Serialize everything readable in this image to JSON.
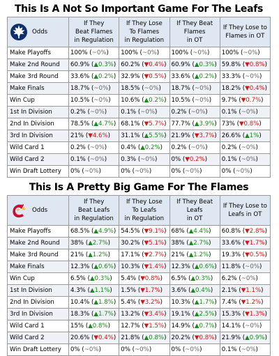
{
  "sections": [
    {
      "id": "leafs",
      "title": "This Is A Not So Important Game For The Leafs",
      "logo": "maple-leaf-icon",
      "odds_label": "Odds",
      "columns": [
        [
          "If They",
          "Beat Flames",
          "in Regulation"
        ],
        [
          "If They Lose",
          "To Flames",
          "in Regulation"
        ],
        [
          "If They Beat",
          "Flames",
          "in OT"
        ],
        [
          "If They Lose to",
          "Flames in OT"
        ]
      ],
      "rows": [
        {
          "label": "Make Playoffs",
          "cells": [
            [
              "100%",
              "~0%",
              "flat"
            ],
            [
              "100%",
              "~0%",
              "flat"
            ],
            [
              "100%",
              "~0%",
              "flat"
            ],
            [
              "100%",
              "~0%",
              "flat"
            ]
          ]
        },
        {
          "label": "Make 2nd Round",
          "cells": [
            [
              "60.9%",
              "▲0.3%",
              "up"
            ],
            [
              "60.2%",
              "▼0.4%",
              "down"
            ],
            [
              "60.9%",
              "▲0.3%",
              "up"
            ],
            [
              "59.8%",
              "▼0.8%",
              "down"
            ]
          ]
        },
        {
          "label": "Make 3rd Round",
          "cells": [
            [
              "33.6%",
              "▲0.2%",
              "up"
            ],
            [
              "32.9%",
              "▼0.5%",
              "down"
            ],
            [
              "33.6%",
              "▲0.2%",
              "up"
            ],
            [
              "33.3%",
              "~0%",
              "flat"
            ]
          ]
        },
        {
          "label": "Make Finals",
          "cells": [
            [
              "18.7%",
              "~0%",
              "flat"
            ],
            [
              "18.5%",
              "~0%",
              "flat"
            ],
            [
              "18.7%",
              "~0%",
              "flat"
            ],
            [
              "18.2%",
              "▼0.4%",
              "down"
            ]
          ]
        },
        {
          "label": "Win Cup",
          "cells": [
            [
              "10.5%",
              "~0%",
              "flat"
            ],
            [
              "10.6%",
              "▲0.2%",
              "up"
            ],
            [
              "10.5%",
              "~0%",
              "flat"
            ],
            [
              "9.7%",
              "▼0.7%",
              "down"
            ]
          ]
        },
        {
          "label": "1st In Division",
          "cells": [
            [
              "0.2%",
              "~0%",
              "flat"
            ],
            [
              "0.1%",
              "~0%",
              "flat"
            ],
            [
              "0.2%",
              "~0%",
              "flat"
            ],
            [
              "0.1%",
              "~0%",
              "flat"
            ]
          ]
        },
        {
          "label": "2nd In Division",
          "cells": [
            [
              "78.5%",
              "▲4.7%",
              "up"
            ],
            [
              "68.1%",
              "▼5.7%",
              "down"
            ],
            [
              "77.7%",
              "▲3.9%",
              "up"
            ],
            [
              "73%",
              "▼0.8%",
              "down"
            ]
          ]
        },
        {
          "label": "3rd In Division",
          "cells": [
            [
              "21%",
              "▼4.6%",
              "down"
            ],
            [
              "31.1%",
              "▲5.5%",
              "up"
            ],
            [
              "21.9%",
              "▼3.7%",
              "down"
            ],
            [
              "26.6%",
              "▲1%",
              "up"
            ]
          ]
        },
        {
          "label": "Wild Card 1",
          "cells": [
            [
              "0.2%",
              "~0%",
              "flat"
            ],
            [
              "0.4%",
              "▲0.2%",
              "up"
            ],
            [
              "0.2%",
              "~0%",
              "flat"
            ],
            [
              "0.2%",
              "~0%",
              "flat"
            ]
          ]
        },
        {
          "label": "Wild Card 2",
          "cells": [
            [
              "0.1%",
              "~0%",
              "flat"
            ],
            [
              "0.3%",
              "~0%",
              "flat"
            ],
            [
              "0%",
              "▼0.2%",
              "down"
            ],
            [
              "0.1%",
              "~0%",
              "flat"
            ]
          ]
        },
        {
          "label": "Win Draft Lottery",
          "cells": [
            [
              "0%",
              "~0%",
              "flat"
            ],
            [
              "0%",
              "~0%",
              "flat"
            ],
            [
              "0%",
              "~0%",
              "flat"
            ],
            [
              "0%",
              "~0%",
              "flat"
            ]
          ]
        }
      ]
    },
    {
      "id": "flames",
      "title": "This Is A Pretty Big Game For The Flames",
      "logo": "flaming-c-icon",
      "odds_label": "Odds",
      "columns": [
        [
          "If They",
          "Beat Leafs",
          "in Regulation"
        ],
        [
          "If They Lose",
          "To Leafs",
          "in Regulation"
        ],
        [
          "If They Beat",
          "Leafs",
          "in OT"
        ],
        [
          "If They Lose to",
          "Leafs in OT"
        ]
      ],
      "rows": [
        {
          "label": "Make Playoffs",
          "cells": [
            [
              "68.5%",
              "▲4.9%",
              "up"
            ],
            [
              "54.5%",
              "▼9.1%",
              "down"
            ],
            [
              "68%",
              "▲4.4%",
              "up"
            ],
            [
              "60.8%",
              "▼2.8%",
              "down"
            ]
          ]
        },
        {
          "label": "Make 2nd Round",
          "cells": [
            [
              "38%",
              "▲2.7%",
              "up"
            ],
            [
              "30.2%",
              "▼5.1%",
              "down"
            ],
            [
              "38%",
              "▲2.7%",
              "up"
            ],
            [
              "33.6%",
              "▼1.7%",
              "down"
            ]
          ]
        },
        {
          "label": "Make 3rd Round",
          "cells": [
            [
              "21%",
              "▲1.2%",
              "up"
            ],
            [
              "17.1%",
              "▼2.7%",
              "down"
            ],
            [
              "21%",
              "▲1.2%",
              "up"
            ],
            [
              "19.3%",
              "▼0.5%",
              "down"
            ]
          ]
        },
        {
          "label": "Make Finals",
          "cells": [
            [
              "12.3%",
              "▲0.6%",
              "up"
            ],
            [
              "10.3%",
              "▼1.4%",
              "down"
            ],
            [
              "12.3%",
              "▲0.6%",
              "up"
            ],
            [
              "11.8%",
              "~0%",
              "flat"
            ]
          ]
        },
        {
          "label": "Win Cup",
          "cells": [
            [
              "6.5%",
              "▲0.3%",
              "up"
            ],
            [
              "5.4%",
              "▼0.8%",
              "down"
            ],
            [
              "6.5%",
              "▲0.3%",
              "up"
            ],
            [
              "6.2%",
              "~0%",
              "flat"
            ]
          ]
        },
        {
          "label": "1st In Division",
          "cells": [
            [
              "4.3%",
              "▲1.1%",
              "up"
            ],
            [
              "1.5%",
              "▼1.7%",
              "down"
            ],
            [
              "3.6%",
              "▲0.4%",
              "up"
            ],
            [
              "2.1%",
              "▼1.1%",
              "down"
            ]
          ]
        },
        {
          "label": "2nd In Division",
          "cells": [
            [
              "10.4%",
              "▲1.8%",
              "up"
            ],
            [
              "5.4%",
              "▼3.2%",
              "down"
            ],
            [
              "10.3%",
              "▲1.7%",
              "up"
            ],
            [
              "7.4%",
              "▼1.2%",
              "down"
            ]
          ]
        },
        {
          "label": "3rd In Division",
          "cells": [
            [
              "18.3%",
              "▲1.7%",
              "up"
            ],
            [
              "13.2%",
              "▼3.4%",
              "down"
            ],
            [
              "19.1%",
              "▲2.5%",
              "up"
            ],
            [
              "15.3%",
              "▼1.3%",
              "down"
            ]
          ]
        },
        {
          "label": "Wild Card 1",
          "cells": [
            [
              "15%",
              "▲0.8%",
              "up"
            ],
            [
              "12.7%",
              "▼1.5%",
              "down"
            ],
            [
              "14.9%",
              "▲0.7%",
              "up"
            ],
            [
              "14.1%",
              "~0%",
              "flat"
            ]
          ]
        },
        {
          "label": "Wild Card 2",
          "cells": [
            [
              "20.6%",
              "▼0.4%",
              "down"
            ],
            [
              "21.8%",
              "▲0.8%",
              "up"
            ],
            [
              "20.2%",
              "▼0.8%",
              "down"
            ],
            [
              "21.9%",
              "▲0.9%",
              "up"
            ]
          ]
        },
        {
          "label": "Win Draft Lottery",
          "cells": [
            [
              "0%",
              "~0%",
              "flat"
            ],
            [
              "0%",
              "~0%",
              "flat"
            ],
            [
              "0%",
              "~0%",
              "flat"
            ],
            [
              "0.1%",
              "~0%",
              "flat"
            ]
          ]
        }
      ]
    }
  ]
}
